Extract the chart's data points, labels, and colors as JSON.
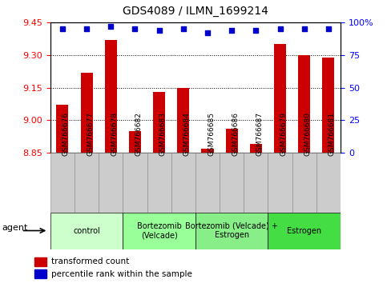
{
  "title": "GDS4089 / ILMN_1699214",
  "samples": [
    "GSM766676",
    "GSM766677",
    "GSM766678",
    "GSM766682",
    "GSM766683",
    "GSM766684",
    "GSM766685",
    "GSM766686",
    "GSM766687",
    "GSM766679",
    "GSM766680",
    "GSM766681"
  ],
  "red_values": [
    9.07,
    9.22,
    9.37,
    8.95,
    9.13,
    9.15,
    8.87,
    8.96,
    8.89,
    9.35,
    9.3,
    9.29
  ],
  "blue_values": [
    95,
    95,
    97,
    95,
    94,
    95,
    92,
    94,
    94,
    95,
    95,
    95
  ],
  "ylim_left": [
    8.85,
    9.45
  ],
  "ylim_right": [
    0,
    100
  ],
  "yticks_left": [
    8.85,
    9.0,
    9.15,
    9.3,
    9.45
  ],
  "yticks_right": [
    0,
    25,
    50,
    75,
    100
  ],
  "ytick_labels_right": [
    "0",
    "25",
    "50",
    "75",
    "100%"
  ],
  "group_data": [
    {
      "label": "control",
      "start": 0,
      "end": 3,
      "color": "#ccffcc"
    },
    {
      "label": "Bortezomib\n(Velcade)",
      "start": 3,
      "end": 6,
      "color": "#99ff99"
    },
    {
      "label": "Bortezomib (Velcade) +\nEstrogen",
      "start": 6,
      "end": 9,
      "color": "#88ee88"
    },
    {
      "label": "Estrogen",
      "start": 9,
      "end": 12,
      "color": "#44dd44"
    }
  ],
  "bar_color": "#cc0000",
  "dot_color": "#0000cc",
  "grey_box_color": "#cccccc",
  "agent_label": "agent",
  "title_fontsize": 10,
  "tick_label_fontsize": 6.5,
  "ylabel_fontsize": 8,
  "group_fontsize": 7,
  "legend_fontsize": 7.5
}
